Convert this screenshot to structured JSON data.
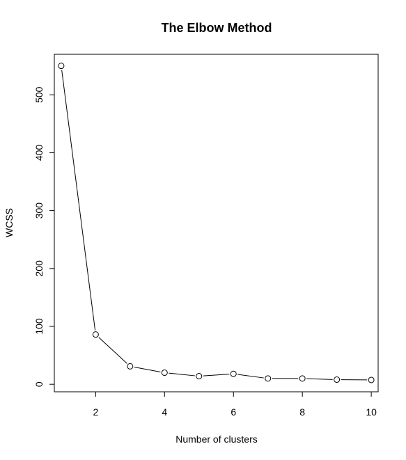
{
  "chart_data": {
    "type": "line",
    "title": "The Elbow Method",
    "xlabel": "Number of clusters",
    "ylabel": "WCSS",
    "x": [
      1,
      2,
      3,
      4,
      5,
      6,
      7,
      8,
      9,
      10
    ],
    "series": [
      {
        "values": [
          550,
          86,
          31,
          20,
          14,
          18,
          10,
          10,
          8,
          7.5
        ]
      }
    ],
    "xlim": [
      0.8,
      10.2
    ],
    "ylim": [
      -13,
      570
    ],
    "xticks": [
      2,
      4,
      6,
      8,
      10
    ],
    "yticks": [
      0,
      100,
      200,
      300,
      400,
      500
    ],
    "grid": false,
    "marker": "open-circle",
    "line_color": "#000000"
  }
}
